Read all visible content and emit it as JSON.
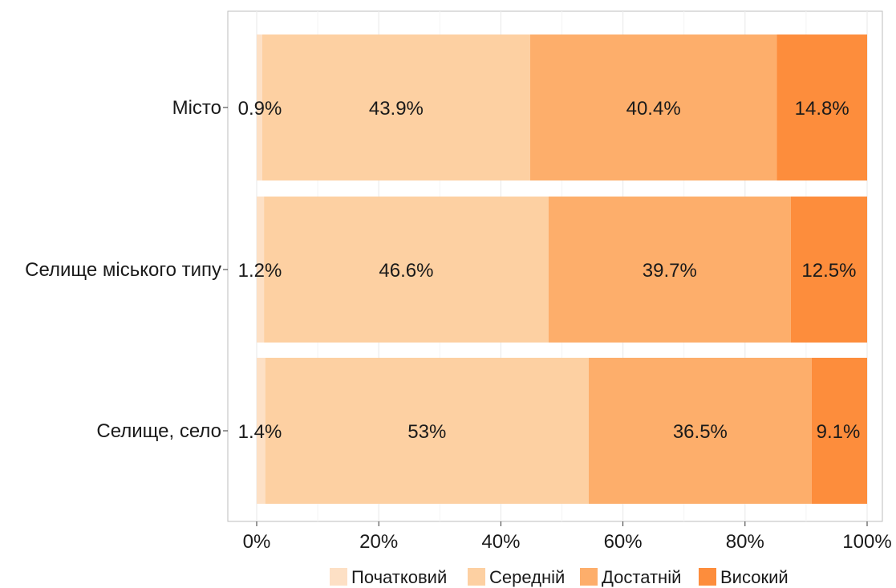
{
  "chart_data": {
    "type": "bar",
    "orientation": "horizontal",
    "stacked": true,
    "percent": true,
    "categories": [
      "Місто",
      "Селище міського типу",
      "Селище, село"
    ],
    "series": [
      {
        "name": "Початковий",
        "values": [
          0.9,
          1.2,
          1.4
        ],
        "labels": [
          "0.9%",
          "1.2%",
          "1.4%"
        ],
        "color": "#fde0c5"
      },
      {
        "name": "Середній",
        "values": [
          43.9,
          46.6,
          53.0
        ],
        "labels": [
          "43.9%",
          "46.6%",
          "53%"
        ],
        "color": "#fdd0a2"
      },
      {
        "name": "Достатній",
        "values": [
          40.4,
          39.7,
          36.5
        ],
        "labels": [
          "40.4%",
          "39.7%",
          "36.5%"
        ],
        "color": "#fdae6b"
      },
      {
        "name": "Високий",
        "values": [
          14.8,
          12.5,
          9.1
        ],
        "labels": [
          "14.8%",
          "12.5%",
          "9.1%"
        ],
        "color": "#fd8d3c"
      }
    ],
    "xlim": [
      0,
      100
    ],
    "xticks": [
      0,
      20,
      40,
      60,
      80,
      100
    ],
    "xtick_labels": [
      "0%",
      "20%",
      "40%",
      "60%",
      "80%",
      "100%"
    ],
    "title": "",
    "xlabel": "",
    "ylabel": "",
    "grid": true,
    "legend_position": "bottom"
  }
}
